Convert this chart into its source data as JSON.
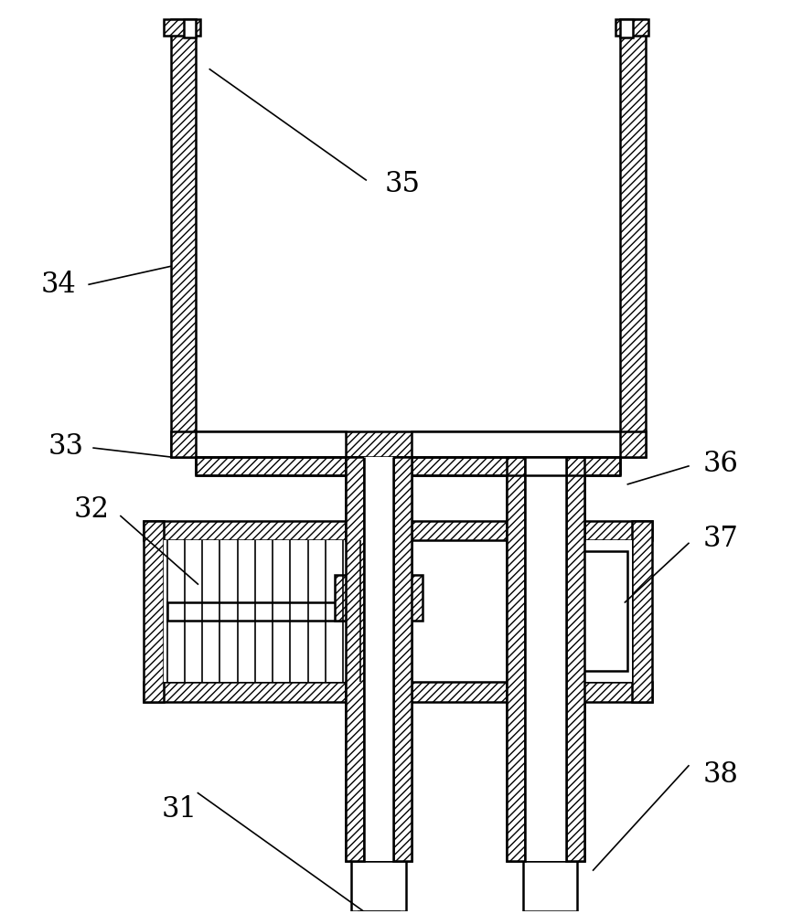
{
  "bg_color": "#ffffff",
  "line_color": "#000000",
  "fig_width": 8.66,
  "fig_height": 10.0,
  "dpi": 100,
  "label_fontsize": 22
}
